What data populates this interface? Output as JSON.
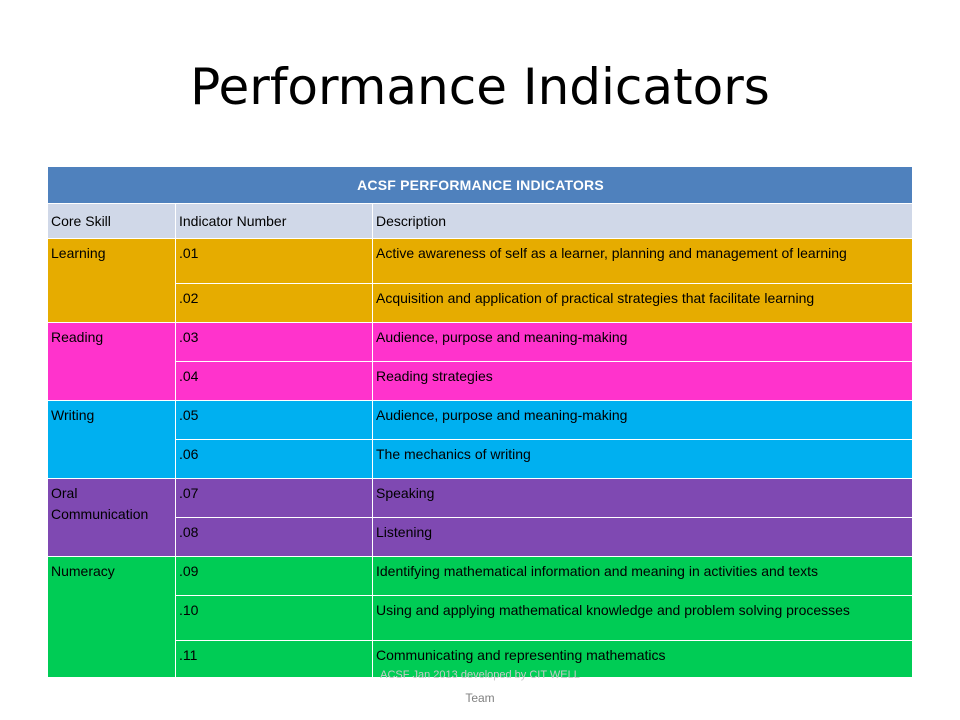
{
  "slide": {
    "title": "Performance Indicators"
  },
  "table": {
    "banner": "ACSF PERFORMANCE INDICATORS",
    "headers": [
      "Core Skill",
      "Indicator Number",
      "Description"
    ],
    "groups": [
      {
        "skill": "Learning",
        "color": "#e6ac00",
        "rows": [
          {
            "number": ".01",
            "description": "Active awareness of self as a learner, planning and management of learning"
          },
          {
            "number": ".02",
            "description": "Acquisition and application of practical strategies that facilitate learning"
          }
        ]
      },
      {
        "skill": "Reading",
        "color": "#ff33cc",
        "rows": [
          {
            "number": ".03",
            "description": "Audience, purpose and meaning-making"
          },
          {
            "number": ".04",
            "description": "Reading strategies"
          }
        ]
      },
      {
        "skill": "Writing",
        "color": "#00b0f0",
        "rows": [
          {
            "number": ".05",
            "description": "Audience, purpose and meaning-making"
          },
          {
            "number": ".06",
            "description": "The mechanics of writing"
          }
        ]
      },
      {
        "skill": "Oral Communication",
        "color": "#7f49b2",
        "rows": [
          {
            "number": ".07",
            "description": "Speaking"
          },
          {
            "number": ".08",
            "description": "Listening"
          }
        ]
      },
      {
        "skill": "Numeracy",
        "color": "#00cc55",
        "rows": [
          {
            "number": ".09",
            "description": "Identifying mathematical information and meaning in activities and texts"
          },
          {
            "number": ".10",
            "description": "Using and applying mathematical knowledge and problem solving processes"
          },
          {
            "number": ".11",
            "description": "Communicating and representing mathematics"
          }
        ]
      }
    ]
  },
  "footer": {
    "credit_faint": "ACSF Jan 2013 developed by CIT WELL",
    "credit_tail": "Team"
  },
  "colors": {
    "banner": "#4f81bd",
    "header_row": "#d0d8e8"
  }
}
